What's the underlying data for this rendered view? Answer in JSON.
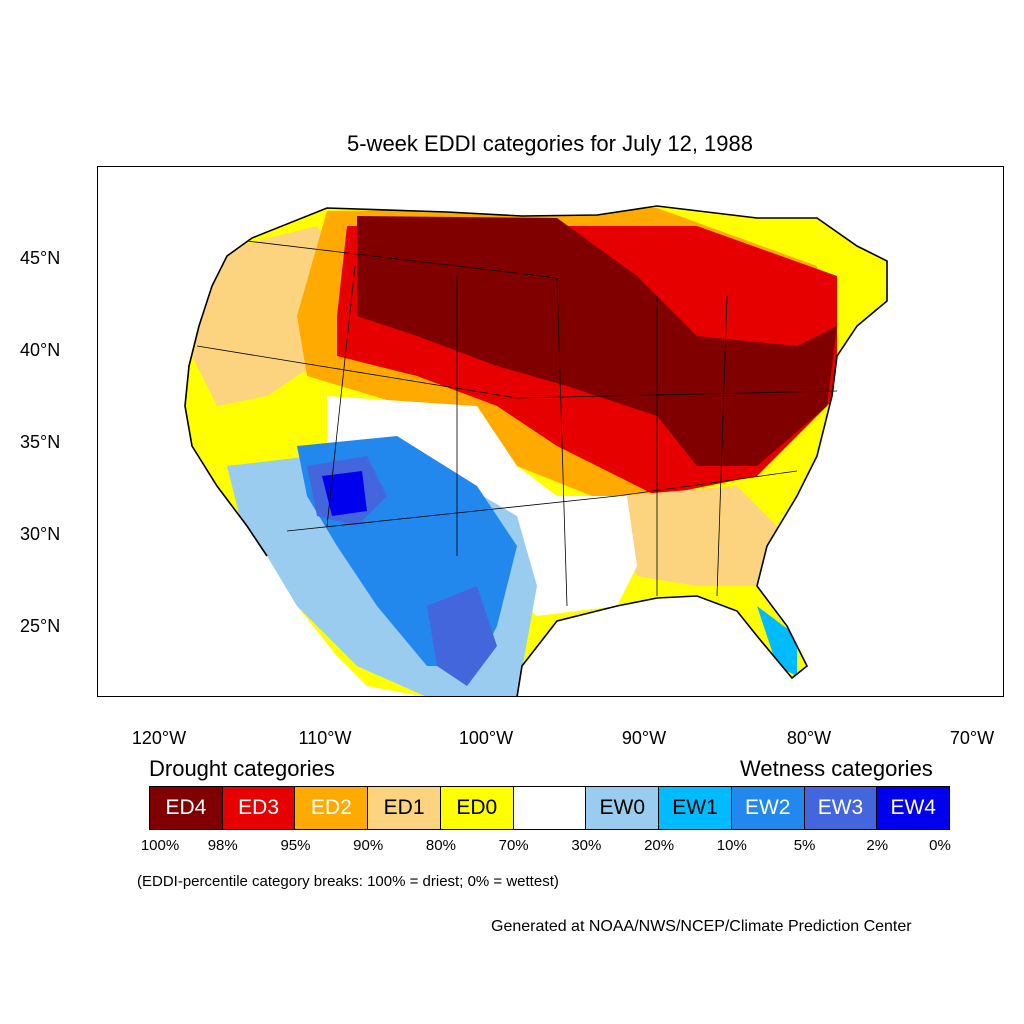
{
  "title": "5-week EDDI categories for July 12, 1988",
  "lat_labels": [
    "45°N",
    "40°N",
    "35°N",
    "30°N",
    "25°N"
  ],
  "lon_labels": [
    "120°W",
    "110°W",
    "100°W",
    "90°W",
    "80°W",
    "70°W"
  ],
  "legend": {
    "drought_heading": "Drought categories",
    "wetness_heading": "Wetness categories",
    "categories": [
      {
        "label": "ED4",
        "color": "#800000",
        "text_color": "#ffffff"
      },
      {
        "label": "ED3",
        "color": "#e60000",
        "text_color": "#ffffff"
      },
      {
        "label": "ED2",
        "color": "#ffaa00",
        "text_color": "#ffffff"
      },
      {
        "label": "ED1",
        "color": "#fcd37f",
        "text_color": "#000000"
      },
      {
        "label": "ED0",
        "color": "#ffff00",
        "text_color": "#000000"
      },
      {
        "label": "",
        "color": "#ffffff",
        "text_color": "#000000"
      },
      {
        "label": "EW0",
        "color": "#99ccee",
        "text_color": "#000000"
      },
      {
        "label": "EW1",
        "color": "#00bbff",
        "text_color": "#000000"
      },
      {
        "label": "EW2",
        "color": "#2288ee",
        "text_color": "#ffffff"
      },
      {
        "label": "EW3",
        "color": "#4466dd",
        "text_color": "#ffffff"
      },
      {
        "label": "EW4",
        "color": "#0000ee",
        "text_color": "#ffffff"
      }
    ],
    "breaks": [
      "100%",
      "98%",
      "95%",
      "90%",
      "80%",
      "70%",
      "30%",
      "20%",
      "10%",
      "5%",
      "2%",
      "0%"
    ],
    "note": "(EDDI-percentile category breaks: 100% = driest; 0% = wettest)"
  },
  "credit": "Generated at NOAA/NWS/NCEP/Climate Prediction Center"
}
